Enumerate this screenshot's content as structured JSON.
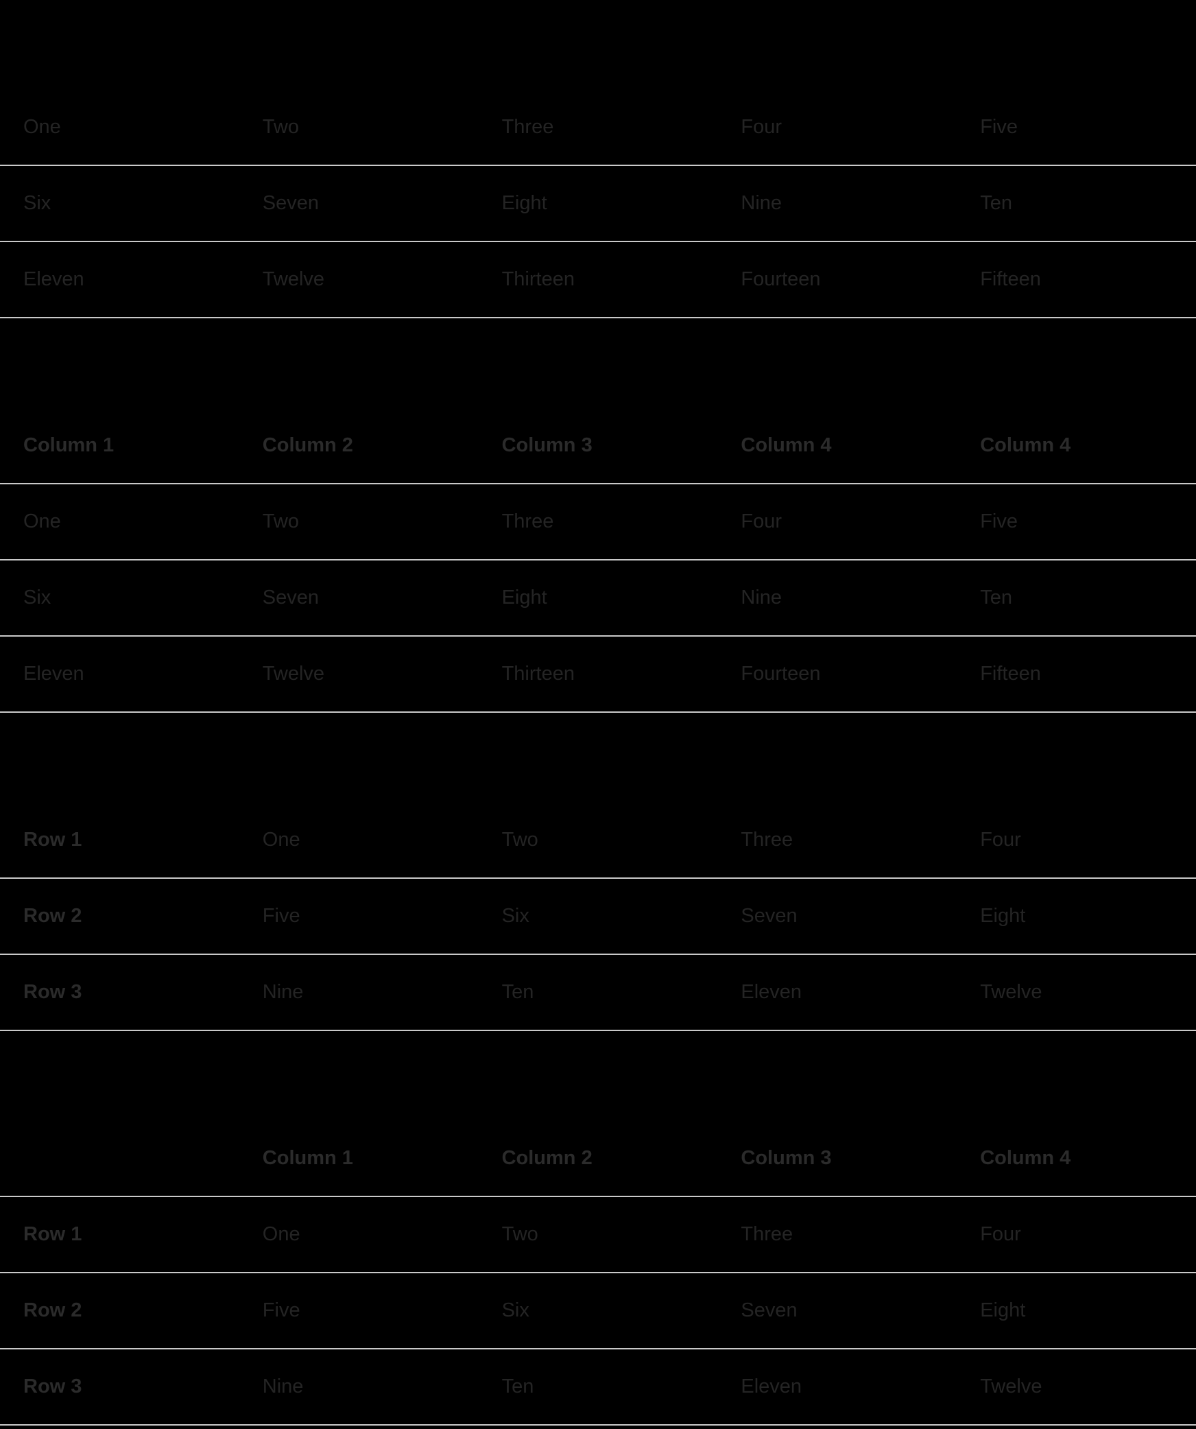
{
  "theme": {
    "background": "#000000",
    "body_text": "#242424",
    "header_text": "#2b2b2b",
    "divider": "#c9c9c9"
  },
  "tables": [
    {
      "name": "plain-table",
      "header": null,
      "rows": [
        [
          "One",
          "Two",
          "Three",
          "Four",
          "Five"
        ],
        [
          "Six",
          "Seven",
          "Eight",
          "Nine",
          "Ten"
        ],
        [
          "Eleven",
          "Twelve",
          "Thirteen",
          "Fourteen",
          "Fifteen"
        ]
      ]
    },
    {
      "name": "column-header-table",
      "header": [
        "Column 1",
        "Column 2",
        "Column 3",
        "Column 4",
        "Column 4"
      ],
      "rows": [
        [
          "One",
          "Two",
          "Three",
          "Four",
          "Five"
        ],
        [
          "Six",
          "Seven",
          "Eight",
          "Nine",
          "Ten"
        ],
        [
          "Eleven",
          "Twelve",
          "Thirteen",
          "Fourteen",
          "Fifteen"
        ]
      ]
    },
    {
      "name": "row-header-table",
      "header": null,
      "row_headers": [
        "Row 1",
        "Row 2",
        "Row 3"
      ],
      "rows": [
        [
          "One",
          "Two",
          "Three",
          "Four"
        ],
        [
          "Five",
          "Six",
          "Seven",
          "Eight"
        ],
        [
          "Nine",
          "Ten",
          "Eleven",
          "Twelve"
        ]
      ]
    },
    {
      "name": "column-and-row-header-table",
      "header": [
        "",
        "Column 1",
        "Column 2",
        "Column 3",
        "Column 4"
      ],
      "row_headers": [
        "Row 1",
        "Row 2",
        "Row 3"
      ],
      "rows": [
        [
          "One",
          "Two",
          "Three",
          "Four"
        ],
        [
          "Five",
          "Six",
          "Seven",
          "Eight"
        ],
        [
          "Nine",
          "Ten",
          "Eleven",
          "Twelve"
        ]
      ]
    }
  ]
}
